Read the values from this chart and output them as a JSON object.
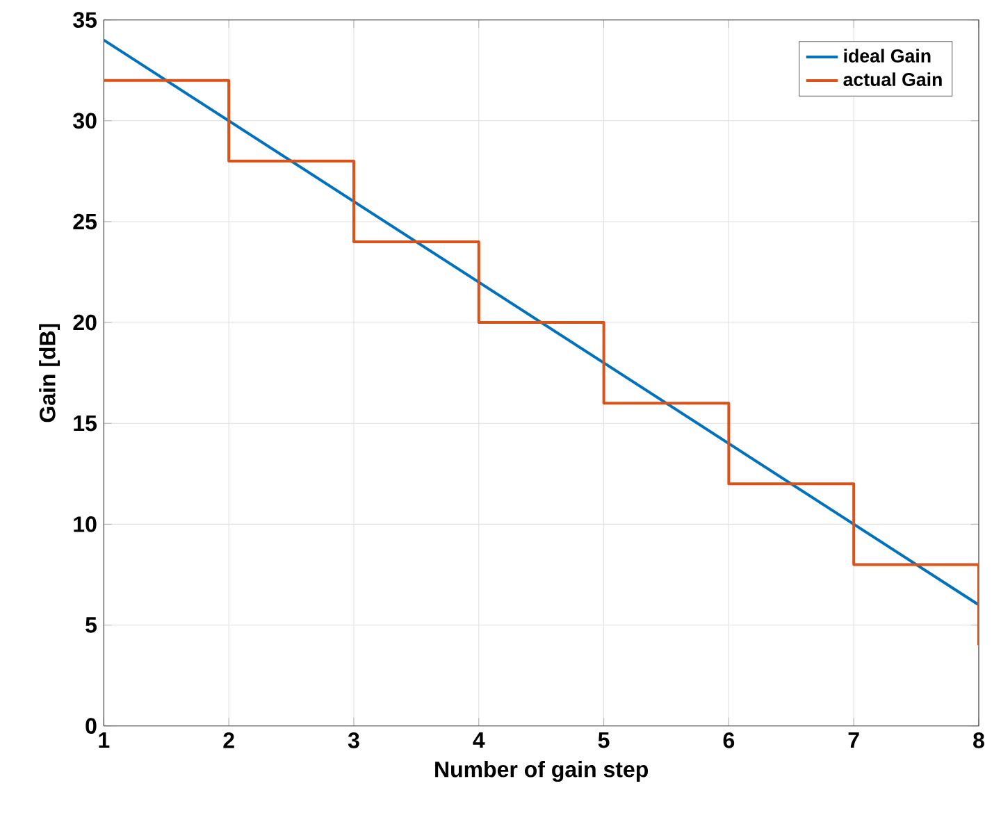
{
  "chart_data": {
    "type": "line",
    "xlabel": "Number of gain step",
    "ylabel": "Gain [dB]",
    "xlim": [
      1,
      8
    ],
    "ylim": [
      0,
      35
    ],
    "xticks": [
      1,
      2,
      3,
      4,
      5,
      6,
      7,
      8
    ],
    "yticks": [
      0,
      5,
      10,
      15,
      20,
      25,
      30,
      35
    ],
    "grid": true,
    "legend": "top right",
    "series": [
      {
        "name": "ideal Gain",
        "color": "#0072bd",
        "x": [
          1,
          8
        ],
        "values": [
          34,
          6
        ]
      },
      {
        "name": "actual Gain",
        "type": "step",
        "color": "#d95319",
        "x": [
          1,
          2,
          3,
          4,
          5,
          6,
          7,
          8
        ],
        "values": [
          32,
          28,
          24,
          20,
          16,
          12,
          8,
          4
        ]
      }
    ]
  }
}
